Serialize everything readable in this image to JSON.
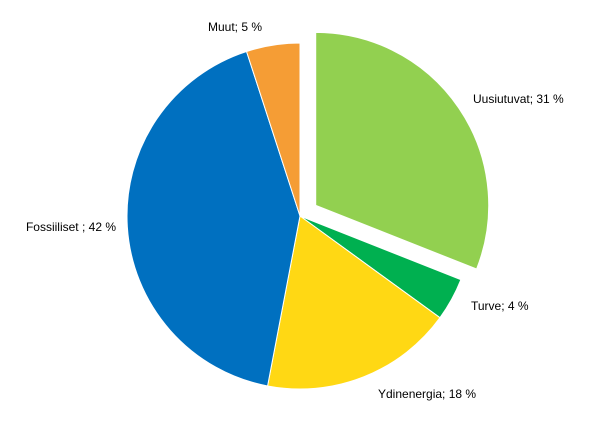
{
  "chart_data": {
    "type": "pie",
    "values": [
      31,
      4,
      18,
      42,
      5
    ],
    "value_labels": [
      "Uusiutuvat; 31 %",
      "Turve; 4 %",
      "Ydinenergia; 18 %",
      "Fossiiliset ; 42 %",
      "Muut; 5 %"
    ],
    "colors": [
      "#92d050",
      "#00b050",
      "#ffd814",
      "#0070c0",
      "#f59d35"
    ],
    "exploded": [
      true,
      false,
      false,
      false,
      false
    ]
  }
}
